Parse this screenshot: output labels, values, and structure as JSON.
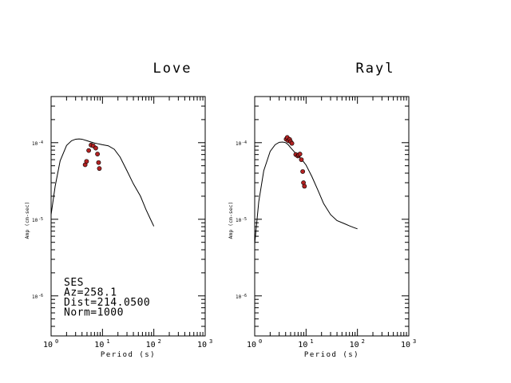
{
  "chart_data": [
    {
      "type": "line",
      "title": "Love",
      "xlabel": "Period (s)",
      "ylabel": "Amp (cm-sec)",
      "xscale": "log",
      "yscale": "log",
      "xlim": [
        1,
        1000
      ],
      "ylim": [
        3e-07,
        0.0004
      ],
      "x_ticks": [
        {
          "value": 1,
          "base": "10",
          "exp": "0"
        },
        {
          "value": 10,
          "base": "10",
          "exp": "1"
        },
        {
          "value": 100,
          "base": "10",
          "exp": "2"
        },
        {
          "value": 1000,
          "base": "10",
          "exp": "3"
        }
      ],
      "y_ticks": [
        {
          "value": 1e-06,
          "base": "10",
          "exp": "-6"
        },
        {
          "value": 1e-05,
          "base": "10",
          "exp": "-5"
        },
        {
          "value": 0.0001,
          "base": "10",
          "exp": "-4"
        }
      ],
      "grid": false,
      "series": [
        {
          "kind": "line",
          "color": "#000000",
          "x": [
            1.0,
            1.2,
            1.5,
            2.0,
            2.5,
            3.0,
            3.5,
            4.0,
            5.0,
            6.0,
            7.0,
            8.0,
            10.0,
            13.0,
            17.0,
            22.0,
            30.0,
            40.0,
            55.0,
            70.0,
            85.0,
            100.0
          ],
          "y": [
            1.15e-05,
            2.7e-05,
            5.8e-05,
            9.2e-05,
            0.000106,
            0.000111,
            0.000112,
            0.000111,
            0.000106,
            0.000102,
            9.9e-05,
            9.7e-05,
            9.4e-05,
            9.1e-05,
            8.2e-05,
            6.5e-05,
            4.3e-05,
            2.9e-05,
            2e-05,
            1.35e-05,
            1.02e-05,
            8.1e-06
          ]
        },
        {
          "kind": "scatter",
          "color": "#b22222",
          "x": [
            4.6,
            4.9,
            5.4,
            6.0,
            6.6,
            7.4,
            8.0,
            8.4,
            8.7
          ],
          "y": [
            5.15e-05,
            5.7e-05,
            7.9e-05,
            9.3e-05,
            9.1e-05,
            8.5e-05,
            7.1e-05,
            5.5e-05,
            4.6e-05
          ]
        }
      ],
      "annotations": [
        "SES",
        "Az=258.1",
        "Dist=214.0500",
        "Norm=1000"
      ]
    },
    {
      "type": "line",
      "title": "Rayl",
      "xlabel": "Period (s)",
      "ylabel": "Amp (cm-sec)",
      "xscale": "log",
      "yscale": "log",
      "xlim": [
        1,
        1000
      ],
      "ylim": [
        3e-07,
        0.0004
      ],
      "x_ticks": [
        {
          "value": 1,
          "base": "10",
          "exp": "0"
        },
        {
          "value": 10,
          "base": "10",
          "exp": "1"
        },
        {
          "value": 100,
          "base": "10",
          "exp": "2"
        },
        {
          "value": 1000,
          "base": "10",
          "exp": "3"
        }
      ],
      "y_ticks": [
        {
          "value": 1e-06,
          "base": "10",
          "exp": "-6"
        },
        {
          "value": 1e-05,
          "base": "10",
          "exp": "-5"
        },
        {
          "value": 0.0001,
          "base": "10",
          "exp": "-4"
        }
      ],
      "grid": false,
      "series": [
        {
          "kind": "line",
          "color": "#000000",
          "x": [
            1.0,
            1.2,
            1.5,
            2.0,
            2.5,
            3.0,
            3.5,
            4.0,
            4.5,
            5.0,
            6.0,
            7.0,
            8.0,
            10.0,
            13.0,
            17.0,
            22.0,
            30.0,
            40.0,
            55.0,
            70.0,
            85.0,
            100.0
          ],
          "y": [
            4.8e-06,
            1.7e-05,
            4.3e-05,
            7.7e-05,
            9.4e-05,
            0.000101,
            0.000102,
            0.0001,
            9.4e-05,
            8.6e-05,
            7.5e-05,
            6.8e-05,
            6.2e-05,
            5.1e-05,
            3.6e-05,
            2.4e-05,
            1.6e-05,
            1.15e-05,
            9.6e-06,
            8.8e-06,
            8.2e-06,
            7.8e-06,
            7.5e-06
          ]
        },
        {
          "kind": "scatter",
          "color": "#b22222",
          "x": [
            4.1,
            4.3,
            4.5,
            4.8,
            5.0,
            5.3,
            6.3,
            6.9,
            7.2,
            7.6,
            8.1,
            8.6,
            8.9,
            9.3
          ],
          "y": [
            0.000111,
            0.000117,
            0.000106,
            0.00011,
            0.000103,
            9.8e-05,
            7e-05,
            6.7e-05,
            6.9e-05,
            7.1e-05,
            6e-05,
            4.2e-05,
            3e-05,
            2.7e-05
          ]
        }
      ],
      "annotations": []
    }
  ]
}
